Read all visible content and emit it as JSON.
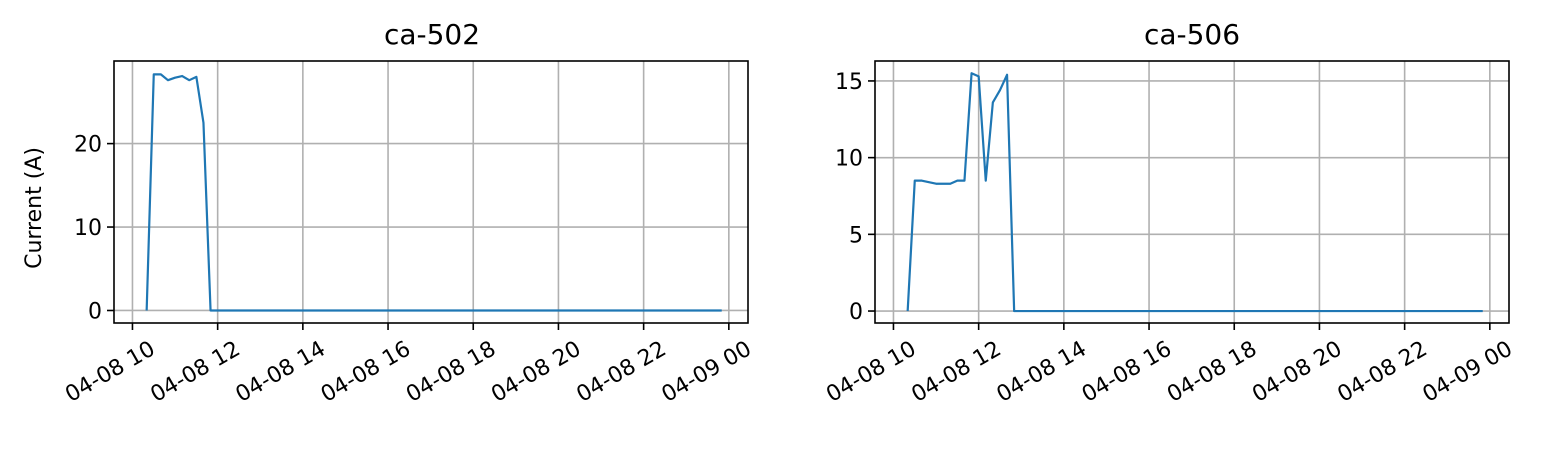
{
  "chart_data": [
    {
      "type": "line",
      "title": "ca-502",
      "xlabel": "",
      "ylabel": "Current (A)",
      "color": "#1f77b4",
      "grid": true,
      "xlim": [
        "2024-04-08 09:34",
        "2024-04-09 00:27"
      ],
      "ylim": [
        -1.5,
        29.9
      ],
      "x_tick_labels": [
        "04-08 10",
        "04-08 12",
        "04-08 14",
        "04-08 16",
        "04-08 18",
        "04-08 20",
        "04-08 22",
        "04-09 00"
      ],
      "y_ticks": [
        0,
        10,
        20
      ],
      "y_tick_labels": [
        "0",
        "10",
        "20"
      ],
      "series": [
        {
          "x": [
            "2024-04-08 10:20",
            "2024-04-08 10:30",
            "2024-04-08 10:40",
            "2024-04-08 10:50",
            "2024-04-08 11:00",
            "2024-04-08 11:10",
            "2024-04-08 11:20",
            "2024-04-08 11:30",
            "2024-04-08 11:40",
            "2024-04-08 11:50",
            "2024-04-08 12:00",
            "2024-04-08 23:50"
          ],
          "y": [
            0,
            28.3,
            28.3,
            27.6,
            27.9,
            28.1,
            27.6,
            28.0,
            22.5,
            0,
            0,
            0
          ]
        }
      ]
    },
    {
      "type": "line",
      "title": "ca-506",
      "xlabel": "",
      "ylabel": "",
      "color": "#1f77b4",
      "grid": true,
      "xlim": [
        "2024-04-08 09:34",
        "2024-04-09 00:27"
      ],
      "ylim": [
        -0.78,
        16.3
      ],
      "x_tick_labels": [
        "04-08 10",
        "04-08 12",
        "04-08 14",
        "04-08 16",
        "04-08 18",
        "04-08 20",
        "04-08 22",
        "04-09 00"
      ],
      "y_ticks": [
        0,
        5,
        10,
        15
      ],
      "y_tick_labels": [
        "0",
        "5",
        "10",
        "15"
      ],
      "series": [
        {
          "x": [
            "2024-04-08 10:20",
            "2024-04-08 10:30",
            "2024-04-08 10:40",
            "2024-04-08 10:50",
            "2024-04-08 11:00",
            "2024-04-08 11:10",
            "2024-04-08 11:20",
            "2024-04-08 11:30",
            "2024-04-08 11:40",
            "2024-04-08 11:50",
            "2024-04-08 12:00",
            "2024-04-08 12:10",
            "2024-04-08 12:20",
            "2024-04-08 12:30",
            "2024-04-08 12:40",
            "2024-04-08 12:50",
            "2024-04-08 13:00",
            "2024-04-08 23:50"
          ],
          "y": [
            0,
            8.5,
            8.5,
            8.4,
            8.3,
            8.3,
            8.3,
            8.5,
            8.5,
            15.5,
            15.3,
            8.5,
            13.6,
            14.4,
            15.4,
            0,
            0,
            0
          ]
        }
      ]
    }
  ]
}
